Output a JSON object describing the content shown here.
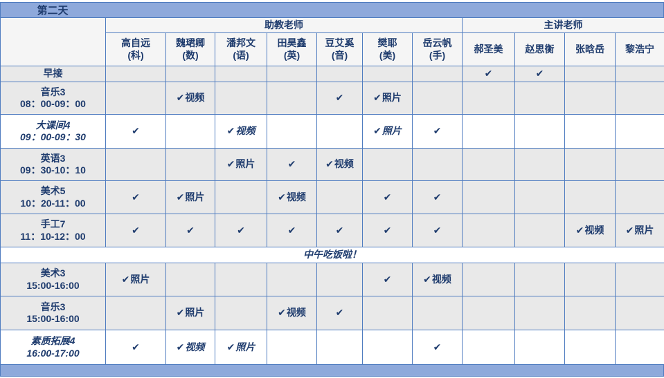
{
  "title": "第二天",
  "header": {
    "assistant_group": "助教老师",
    "lead_group": "主讲老师",
    "assistant_teachers": [
      {
        "name": "高自远",
        "subject": "(科)"
      },
      {
        "name": "魏珺卿",
        "subject": "(数)"
      },
      {
        "name": "潘邦文",
        "subject": "(语)"
      },
      {
        "name": "田昊鑫",
        "subject": "(英)"
      },
      {
        "name": "豆艾奚",
        "subject": "(音)"
      },
      {
        "name": "樊耶",
        "subject": "(美)"
      },
      {
        "name": "岳云帆",
        "subject": "(手)"
      }
    ],
    "lead_teachers": [
      "郝圣美",
      "赵思衡",
      "张晗岳",
      "黎浩宁"
    ]
  },
  "icons": {
    "check": "✔"
  },
  "rows": [
    {
      "label": "早接",
      "time": "",
      "style": "shaded",
      "cells": [
        "",
        "",
        "",
        "",
        "",
        "",
        "",
        "✔",
        "✔",
        "",
        ""
      ]
    },
    {
      "label": "音乐3",
      "time": "08：00-09：00",
      "style": "shaded",
      "cells": [
        "",
        "✔视频",
        "",
        "",
        "✔",
        "✔照片",
        "",
        "",
        "",
        "",
        ""
      ]
    },
    {
      "label": "大课间4",
      "time": "09：00-09：30",
      "style": "italic",
      "cells": [
        "✔",
        "",
        "✔视频",
        "",
        "",
        "✔照片",
        "✔",
        "",
        "",
        "",
        ""
      ]
    },
    {
      "label": "英语3",
      "time": "09：30-10：10",
      "style": "shaded",
      "cells": [
        "",
        "",
        "✔照片",
        "✔",
        "✔视频",
        "",
        "",
        "",
        "",
        "",
        ""
      ]
    },
    {
      "label": "美术5",
      "time": "10：20-11：00",
      "style": "shaded",
      "cells": [
        "✔",
        "✔照片",
        "",
        "✔视频",
        "",
        "✔",
        "✔",
        "",
        "",
        "",
        ""
      ]
    },
    {
      "label": "手工7",
      "time": "11：10-12：00",
      "style": "shaded",
      "cells": [
        "✔",
        "✔",
        "✔",
        "✔",
        "✔",
        "✔",
        "✔",
        "",
        "",
        "✔视频",
        "✔照片"
      ]
    },
    {
      "label": "中午吃饭啦！",
      "time": "",
      "style": "italic",
      "type": "banner",
      "cells": []
    },
    {
      "label": "美术3",
      "time": "15:00-16:00",
      "style": "shaded",
      "cells": [
        "✔照片",
        "",
        "",
        "",
        "",
        "✔",
        "✔视频",
        "",
        "",
        "",
        ""
      ]
    },
    {
      "label": "音乐3",
      "time": "15:00-16:00",
      "style": "shaded",
      "cells": [
        "",
        "✔照片",
        "",
        "✔视频",
        "✔",
        "",
        "",
        "",
        "",
        "",
        ""
      ]
    },
    {
      "label": "素质拓展4",
      "time": "16:00-17:00",
      "style": "italic",
      "cells": [
        "✔",
        "✔视频",
        "✔照片",
        "",
        "",
        "",
        "✔",
        "",
        "",
        "",
        ""
      ]
    }
  ],
  "colors": {
    "bar_background": "#8EA9DB",
    "grid_border": "#4F7CC0",
    "text": "#1F3C6E",
    "shaded_row": "#E9E9E9",
    "white_row": "#FFFFFF"
  }
}
